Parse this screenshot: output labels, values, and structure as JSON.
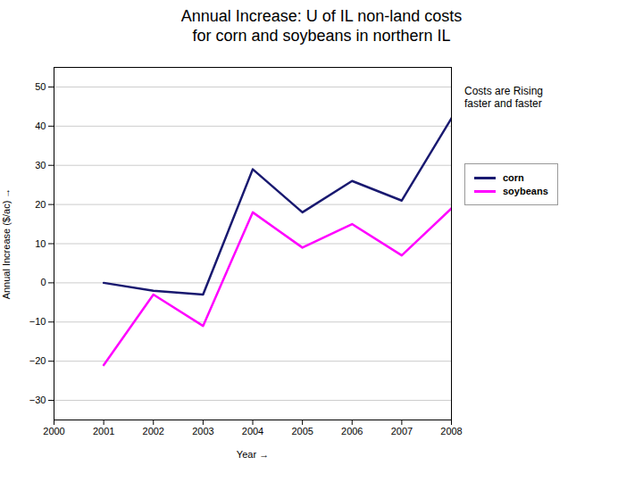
{
  "chart_data": {
    "type": "line",
    "title": "Annual Increase: U of IL non-land costs\nfor corn and soybeans in northern IL",
    "xlabel": "Year",
    "ylabel": "Annual Increase ($/ac)",
    "x": [
      2000,
      2001,
      2002,
      2003,
      2004,
      2005,
      2006,
      2007,
      2008
    ],
    "series": [
      {
        "name": "corn",
        "color": "#191970",
        "values": [
          null,
          0,
          -2,
          -3,
          29,
          18,
          26,
          21,
          42
        ]
      },
      {
        "name": "soybeans",
        "color": "#FF00FF",
        "values": [
          null,
          -21,
          -3,
          -11,
          18,
          9,
          15,
          7,
          19
        ]
      }
    ],
    "xlim": [
      2000,
      2008
    ],
    "xticks": [
      2000,
      2001,
      2002,
      2003,
      2004,
      2005,
      2006,
      2007,
      2008
    ],
    "ylim": [
      -35,
      55
    ],
    "yticks": [
      -30,
      -20,
      -10,
      0,
      10,
      20,
      30,
      40,
      50
    ],
    "grid": true,
    "legend": "right",
    "annotation": "Costs are Rising\nfaster and faster"
  }
}
